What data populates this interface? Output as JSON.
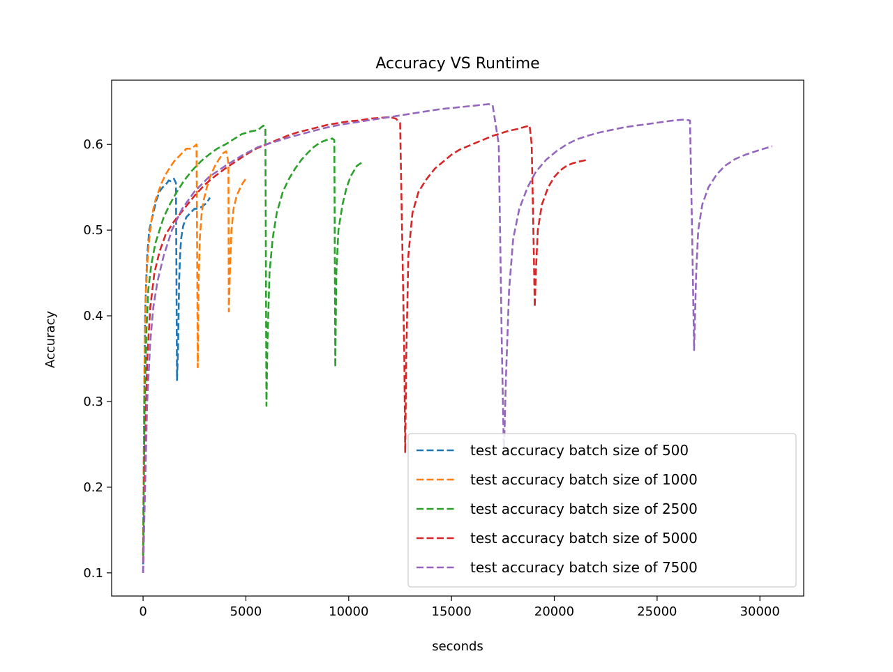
{
  "chart_data": {
    "type": "line",
    "title": "Accuracy VS Runtime",
    "xlabel": "seconds",
    "ylabel": "Accuracy",
    "xlim": [
      -1530,
      32130
    ],
    "ylim": [
      0.073,
      0.675
    ],
    "xticks": [
      0,
      5000,
      10000,
      15000,
      20000,
      25000,
      30000
    ],
    "yticks": [
      0.1,
      0.2,
      0.3,
      0.4,
      0.5,
      0.6
    ],
    "grid": false,
    "legend_position": "lower-right",
    "line_style": "dashed",
    "series": [
      {
        "name": "test accuracy batch size of 500",
        "color": "#1f77b4",
        "x": [
          0,
          50,
          100,
          150,
          200,
          300,
          400,
          500,
          650,
          800,
          950,
          1100,
          1250,
          1350,
          1500,
          1600,
          1650,
          1700,
          1750,
          1800,
          1850,
          1950,
          2100,
          2300,
          2500,
          2700,
          2900,
          3100,
          3250
        ],
        "y": [
          0.11,
          0.3,
          0.4,
          0.44,
          0.47,
          0.5,
          0.51,
          0.52,
          0.535,
          0.545,
          0.55,
          0.553,
          0.558,
          0.557,
          0.56,
          0.555,
          0.325,
          0.36,
          0.44,
          0.47,
          0.49,
          0.505,
          0.515,
          0.52,
          0.525,
          0.525,
          0.528,
          0.532,
          0.538
        ]
      },
      {
        "name": "test accuracy batch size of 1000",
        "color": "#ff7f0e",
        "x": [
          0,
          60,
          120,
          200,
          300,
          400,
          500,
          600,
          750,
          900,
          1100,
          1300,
          1500,
          1700,
          1900,
          2100,
          2300,
          2500,
          2600,
          2660,
          2700,
          2760,
          2850,
          2950,
          3100,
          3300,
          3500,
          3700,
          3900,
          4050,
          4150,
          4170,
          4220,
          4300,
          4400,
          4550,
          4700,
          4850,
          5000
        ],
        "y": [
          0.12,
          0.32,
          0.42,
          0.46,
          0.49,
          0.51,
          0.525,
          0.535,
          0.545,
          0.555,
          0.565,
          0.573,
          0.58,
          0.585,
          0.59,
          0.595,
          0.595,
          0.598,
          0.6,
          0.34,
          0.44,
          0.49,
          0.52,
          0.535,
          0.55,
          0.565,
          0.575,
          0.583,
          0.59,
          0.592,
          0.578,
          0.405,
          0.45,
          0.5,
          0.525,
          0.54,
          0.548,
          0.555,
          0.56
        ]
      },
      {
        "name": "test accuracy batch size of 2500",
        "color": "#2ca02c",
        "x": [
          0,
          80,
          160,
          250,
          400,
          600,
          800,
          1000,
          1300,
          1600,
          2000,
          2400,
          2800,
          3200,
          3600,
          4000,
          4400,
          4800,
          5200,
          5600,
          5850,
          5950,
          6000,
          6050,
          6150,
          6300,
          6500,
          6800,
          7100,
          7400,
          7700,
          8000,
          8300,
          8600,
          8900,
          9200,
          9300,
          9350,
          9400,
          9500,
          9700,
          9900,
          10100,
          10400,
          10700
        ],
        "y": [
          0.12,
          0.3,
          0.38,
          0.43,
          0.46,
          0.485,
          0.5,
          0.515,
          0.53,
          0.543,
          0.558,
          0.57,
          0.58,
          0.588,
          0.595,
          0.6,
          0.606,
          0.612,
          0.615,
          0.617,
          0.622,
          0.62,
          0.295,
          0.37,
          0.45,
          0.49,
          0.52,
          0.545,
          0.56,
          0.572,
          0.582,
          0.59,
          0.597,
          0.602,
          0.605,
          0.607,
          0.605,
          0.34,
          0.45,
          0.5,
          0.53,
          0.55,
          0.563,
          0.575,
          0.58
        ]
      },
      {
        "name": "test accuracy batch size of 5000",
        "color": "#d62728",
        "x": [
          0,
          100,
          200,
          350,
          550,
          800,
          1100,
          1500,
          2000,
          2500,
          3000,
          3500,
          4000,
          4500,
          5000,
          5500,
          6000,
          6500,
          7000,
          7500,
          8000,
          8500,
          9000,
          9500,
          10000,
          10500,
          11000,
          11500,
          12000,
          12300,
          12500,
          12700,
          12750,
          12800,
          12900,
          13100,
          13400,
          13800,
          14200,
          14600,
          15000,
          15400,
          15800,
          16200,
          16600,
          17000,
          17400,
          17800,
          18200,
          18500,
          18800,
          18900,
          19000,
          19050,
          19100,
          19200,
          19400,
          19700,
          20000,
          20300,
          20600,
          20900,
          21200,
          21600
        ],
        "y": [
          0.1,
          0.25,
          0.35,
          0.41,
          0.45,
          0.475,
          0.495,
          0.51,
          0.525,
          0.54,
          0.553,
          0.563,
          0.572,
          0.58,
          0.588,
          0.595,
          0.6,
          0.605,
          0.61,
          0.614,
          0.617,
          0.62,
          0.623,
          0.625,
          0.627,
          0.628,
          0.63,
          0.631,
          0.632,
          0.63,
          0.625,
          0.36,
          0.24,
          0.35,
          0.47,
          0.52,
          0.545,
          0.56,
          0.572,
          0.58,
          0.588,
          0.594,
          0.598,
          0.602,
          0.606,
          0.61,
          0.613,
          0.616,
          0.618,
          0.62,
          0.622,
          0.6,
          0.48,
          0.41,
          0.45,
          0.5,
          0.53,
          0.55,
          0.562,
          0.57,
          0.575,
          0.578,
          0.58,
          0.582
        ]
      },
      {
        "name": "test accuracy batch size of 7500",
        "color": "#9467bd",
        "x": [
          0,
          100,
          200,
          350,
          500,
          700,
          1000,
          1400,
          1900,
          2500,
          3200,
          4000,
          4800,
          5600,
          6400,
          7200,
          8000,
          8800,
          9600,
          10400,
          11200,
          12000,
          12800,
          13600,
          14400,
          15200,
          16000,
          16800,
          17000,
          17300,
          17450,
          17550,
          17650,
          17800,
          18000,
          18300,
          18700,
          19100,
          19600,
          20100,
          20600,
          21100,
          21600,
          22200,
          22800,
          23400,
          24000,
          24600,
          25200,
          25800,
          26300,
          26600,
          26700,
          26800,
          26900,
          27000,
          27200,
          27500,
          27900,
          28300,
          28800,
          29300,
          29800,
          30200,
          30600
        ],
        "y": [
          0.1,
          0.2,
          0.3,
          0.37,
          0.41,
          0.44,
          0.47,
          0.5,
          0.525,
          0.545,
          0.562,
          0.575,
          0.587,
          0.597,
          0.603,
          0.609,
          0.614,
          0.619,
          0.623,
          0.626,
          0.629,
          0.632,
          0.635,
          0.638,
          0.641,
          0.643,
          0.645,
          0.647,
          0.646,
          0.6,
          0.36,
          0.24,
          0.33,
          0.43,
          0.49,
          0.525,
          0.55,
          0.568,
          0.582,
          0.592,
          0.6,
          0.606,
          0.61,
          0.614,
          0.617,
          0.62,
          0.622,
          0.624,
          0.626,
          0.628,
          0.629,
          0.628,
          0.5,
          0.36,
          0.45,
          0.5,
          0.53,
          0.55,
          0.565,
          0.575,
          0.583,
          0.588,
          0.592,
          0.595,
          0.598
        ]
      }
    ]
  }
}
